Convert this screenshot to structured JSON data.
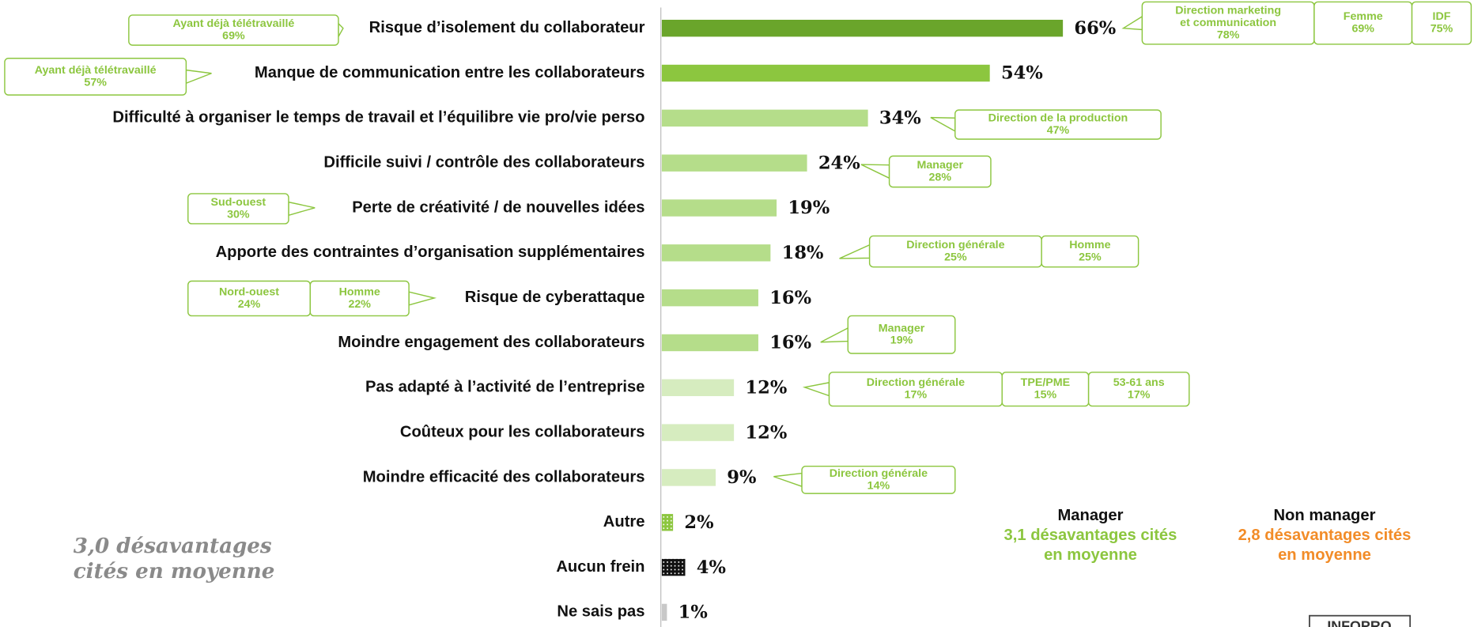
{
  "chart_data": {
    "type": "bar",
    "orientation": "horizontal",
    "categories": [
      "Risque d’isolement du collaborateur",
      "Manque de communication entre les collaborateurs",
      "Difficulté à organiser le temps de travail et l’équilibre vie pro/vie perso",
      "Difficile suivi / contrôle des collaborateurs",
      "Perte de créativité / de nouvelles idées",
      "Apporte des contraintes d’organisation supplémentaires",
      "Risque de cyberattaque",
      "Moindre engagement des collaborateurs",
      "Pas adapté à l’activité de l’entreprise",
      "Coûteux pour les collaborateurs",
      "Moindre efficacité des collaborateurs",
      "Autre",
      "Aucun frein",
      "Ne sais pas"
    ],
    "values": [
      66,
      54,
      34,
      24,
      19,
      18,
      16,
      16,
      12,
      12,
      9,
      2,
      4,
      1
    ],
    "value_labels": [
      "66%",
      "54%",
      "34%",
      "24%",
      "19%",
      "18%",
      "16%",
      "16%",
      "12%",
      "12%",
      "9%",
      "2%",
      "4%",
      "1%"
    ],
    "colors": [
      "#6aa52b",
      "#8cc63f",
      "#b5dd8a",
      "#b5dd8a",
      "#b5dd8a",
      "#b5dd8a",
      "#b5dd8a",
      "#b5dd8a",
      "#d6ecbf",
      "#d6ecbf",
      "#d6ecbf",
      "#8cc63f",
      "#111111",
      "#c8c8c8"
    ],
    "xlim": [
      0,
      100
    ],
    "annotations": [
      [
        {
          "lines": [
            "Ayant déjà télétravaillé",
            "69%"
          ]
        },
        {
          "lines": [
            "Direction  marketing",
            "et communication",
            "78%"
          ]
        },
        {
          "lines": [
            "Femme",
            "69%"
          ]
        },
        {
          "lines": [
            "IDF",
            "75%"
          ]
        }
      ],
      [
        {
          "lines": [
            "Ayant déjà télétravaillé",
            "57%"
          ]
        }
      ],
      [
        {
          "lines": [
            "Direction de la production",
            "47%"
          ]
        }
      ],
      [
        {
          "lines": [
            "Manager",
            "28%"
          ]
        }
      ],
      [
        {
          "lines": [
            "Sud-ouest",
            "30%"
          ]
        }
      ],
      [
        {
          "lines": [
            "Direction  générale",
            "25%"
          ]
        },
        {
          "lines": [
            "Homme",
            "25%"
          ]
        }
      ],
      [
        {
          "lines": [
            "Nord-ouest",
            "24%"
          ]
        },
        {
          "lines": [
            "Homme",
            "22%"
          ]
        }
      ],
      [
        {
          "lines": [
            "Manager",
            "19%"
          ]
        }
      ],
      [
        {
          "lines": [
            "Direction  générale",
            "17%"
          ]
        },
        {
          "lines": [
            "TPE/PME",
            "15%"
          ]
        },
        {
          "lines": [
            "53-61 ans",
            "17%"
          ]
        }
      ],
      [],
      [
        {
          "lines": [
            "Direction  générale",
            "14%"
          ]
        }
      ],
      [],
      [],
      []
    ],
    "note": [
      "3,0 désavantages",
      "cités en moyenne"
    ],
    "groups": [
      {
        "name": "Manager",
        "lines": [
          "3,1 désavantages cités",
          "en moyenne"
        ],
        "color": "#8cc63f"
      },
      {
        "name": "Non manager",
        "lines": [
          "2,8 désavantages cités",
          "en moyenne"
        ],
        "color": "#f28c28"
      }
    ],
    "logo": "INFOPRO"
  }
}
